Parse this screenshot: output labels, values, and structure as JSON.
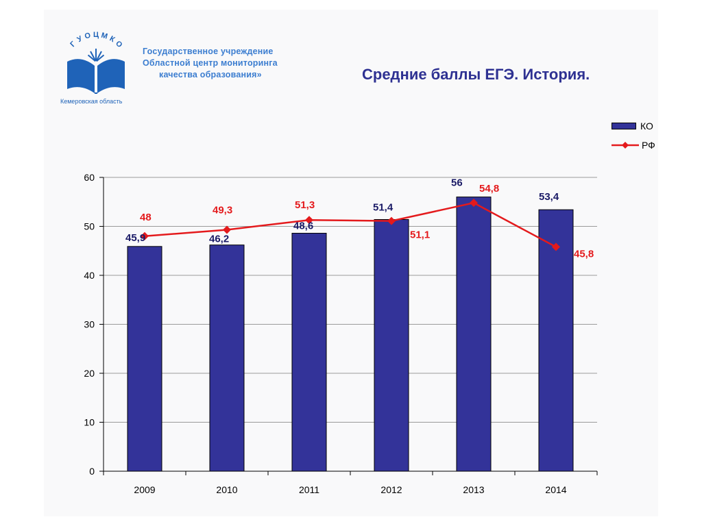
{
  "header": {
    "org_lines": [
      "Государственное учреждение",
      "Областной центр мониторинга",
      "качества образования»"
    ],
    "logo_arc_text": "ГУОЦМКО",
    "logo_region": "Кемеровская область",
    "title": "Средние баллы ЕГЭ. История."
  },
  "colors": {
    "bar": "#333399",
    "line": "#e41a1c",
    "bar_label": "#1a1a66",
    "line_label": "#e41a1c",
    "title": "#2e3192"
  },
  "chart_data": {
    "type": "bar",
    "title": "",
    "xlabel": "",
    "ylabel": "",
    "categories": [
      "2009",
      "2010",
      "2011",
      "2012",
      "2013",
      "2014"
    ],
    "ylim": [
      0,
      60
    ],
    "yticks": [
      0,
      10,
      20,
      30,
      40,
      50,
      60
    ],
    "grid": true,
    "legend_position": "top-right",
    "series": [
      {
        "name": "КО",
        "type": "bar",
        "values": [
          45.9,
          46.2,
          48.6,
          51.4,
          56,
          53.4
        ],
        "labels": [
          "45,9",
          "46,2",
          "48,6",
          "51,4",
          "56",
          "53,4"
        ]
      },
      {
        "name": "РФ",
        "type": "line",
        "marker": "diamond",
        "values": [
          48,
          49.3,
          51.3,
          51.1,
          54.8,
          45.8
        ],
        "labels": [
          "48",
          "49,3",
          "51,3",
          "51,1",
          "54,8",
          "45,8"
        ]
      }
    ]
  }
}
